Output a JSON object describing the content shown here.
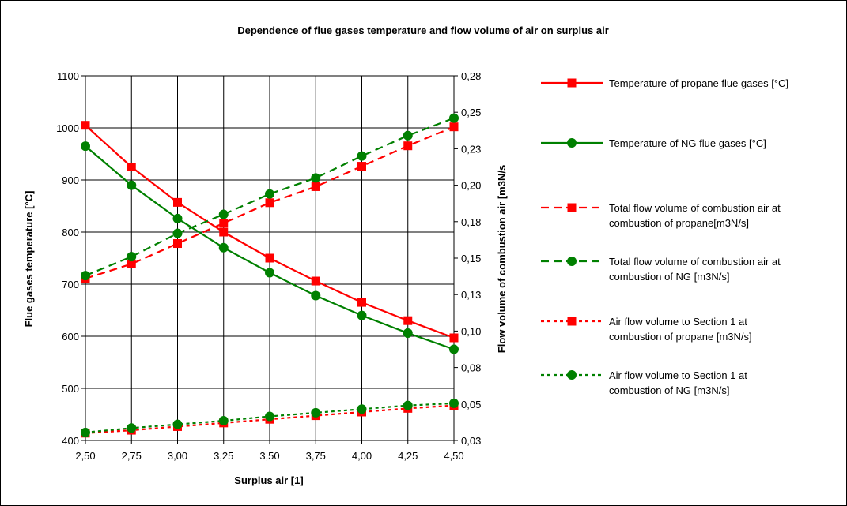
{
  "chart_data": {
    "type": "line",
    "title": "Dependence of flue gases temperature and flow volume of air on surplus air",
    "xlabel": "Surplus air [1]",
    "ylabel": "Flue gases temperature [°C]",
    "y2label": "Flow volume of combustion air [m3N/s",
    "x": [
      2.5,
      2.75,
      3.0,
      3.25,
      3.5,
      3.75,
      4.0,
      4.25,
      4.5
    ],
    "x_ticks": [
      "2,50",
      "2,75",
      "3,00",
      "3,25",
      "3,50",
      "3,75",
      "4,00",
      "4,25",
      "4,50"
    ],
    "ylim": [
      400,
      1100
    ],
    "y_ticks": [
      "400",
      "500",
      "600",
      "700",
      "800",
      "900",
      "1000",
      "1100"
    ],
    "y2lim": [
      0.025,
      0.275
    ],
    "y2_ticks": [
      "0,03",
      "0,05",
      "0,08",
      "0,10",
      "0,13",
      "0,15",
      "0,18",
      "0,20",
      "0,23",
      "0,25",
      "0,28"
    ],
    "grid": true,
    "legend_position": "right",
    "series": [
      {
        "name": "Temperature of propane flue gases [°C]",
        "axis": "left",
        "color": "#ff0000",
        "marker": "square",
        "dash": "solid",
        "values": [
          1005,
          925,
          857,
          800,
          750,
          706,
          665,
          630,
          597
        ]
      },
      {
        "name": "Temperature of NG flue gases [°C]",
        "axis": "left",
        "color": "#008000",
        "marker": "circle",
        "dash": "solid",
        "values": [
          965,
          890,
          826,
          770,
          722,
          678,
          640,
          606,
          575
        ]
      },
      {
        "name": "Total flow volume of combustion air at combustion of propane[m3N/s]",
        "axis": "right",
        "color": "#ff0000",
        "marker": "square",
        "dash": "dashed",
        "values": [
          0.136,
          0.146,
          0.16,
          0.174,
          0.188,
          0.199,
          0.213,
          0.227,
          0.24
        ]
      },
      {
        "name": "Total flow volume of combustion air at combustion of NG [m3N/s]",
        "axis": "right",
        "color": "#008000",
        "marker": "circle",
        "dash": "dashed",
        "values": [
          0.138,
          0.151,
          0.167,
          0.18,
          0.194,
          0.205,
          0.22,
          0.234,
          0.246
        ]
      },
      {
        "name": "Air flow volume to Section 1 at combustion of propane [m3N/s]",
        "axis": "right",
        "color": "#ff0000",
        "marker": "square",
        "dash": "dotted",
        "values": [
          0.03,
          0.032,
          0.0345,
          0.037,
          0.0395,
          0.042,
          0.0445,
          0.047,
          0.049
        ]
      },
      {
        "name": "Air flow volume to Section 1 at combustion of NG [m3N/s]",
        "axis": "right",
        "color": "#008000",
        "marker": "circle",
        "dash": "dotted",
        "values": [
          0.0305,
          0.0335,
          0.036,
          0.0385,
          0.0415,
          0.044,
          0.0465,
          0.049,
          0.0505
        ]
      }
    ]
  }
}
